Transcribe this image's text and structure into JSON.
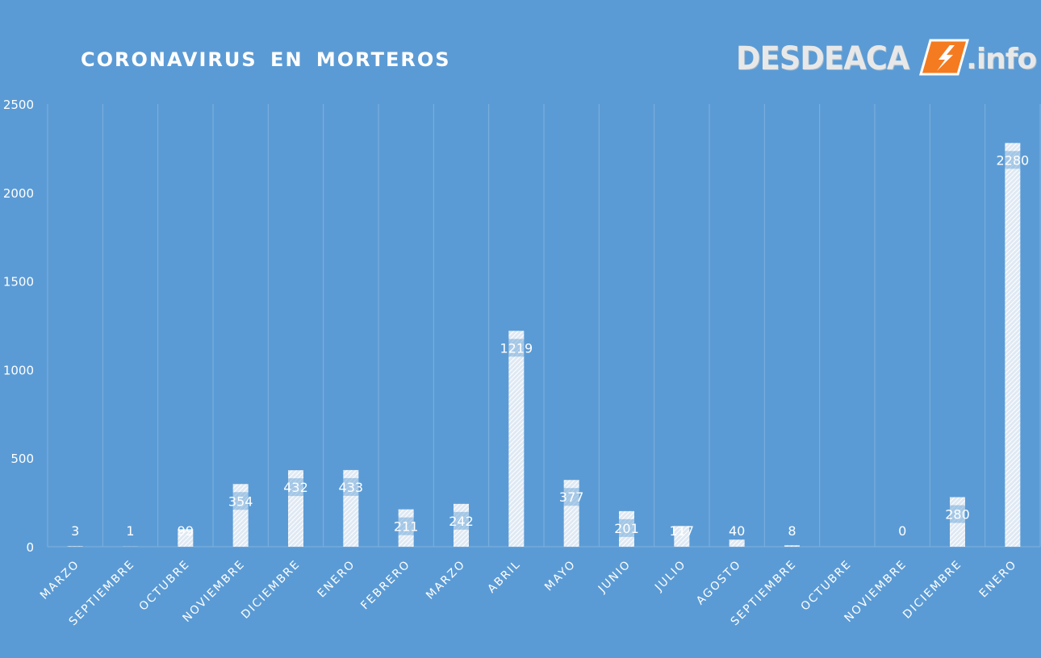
{
  "title": "CORONAVIRUS  EN MORTEROS",
  "logo": {
    "brand": "DESDEACA",
    "suffix": ".info",
    "icon": "lightning-bolt-icon",
    "badge_color": "#f47b20"
  },
  "colors": {
    "background": "#5b9bd5",
    "gridline": "#7fb1df",
    "bar": "#ffffff",
    "text": "#ffffff"
  },
  "chart_data": {
    "type": "bar",
    "title": "CORONAVIRUS  EN MORTEROS",
    "xlabel": "",
    "ylabel": "",
    "ylim": [
      0,
      2500
    ],
    "yticks": [
      0,
      500,
      1000,
      1500,
      2000,
      2500
    ],
    "grid": "vertical",
    "bar_pattern": "hatched",
    "categories": [
      "MARZO",
      "SEPTIEMBRE",
      "OCTUBRE",
      "NOVIEMBRE",
      "DICIEMBRE",
      "ENERO",
      "FEBRERO",
      "MARZO",
      "ABRIL",
      "MAYO",
      "JUNIO",
      "JULIO",
      "AGOSTO",
      "SEPTIEMBRE",
      "OCTUBRE",
      "NOVIEMBRE",
      "DICIEMBRE",
      "ENERO"
    ],
    "values": [
      3,
      1,
      99,
      354,
      432,
      433,
      211,
      242,
      1219,
      377,
      201,
      117,
      40,
      8,
      null,
      0,
      280,
      2280
    ],
    "data_labels": [
      "3",
      "1",
      "99",
      "354",
      "432",
      "433",
      "211",
      "242",
      "1219",
      "377",
      "201",
      "117",
      "40",
      "8",
      "",
      "0",
      "280",
      "2280"
    ]
  }
}
